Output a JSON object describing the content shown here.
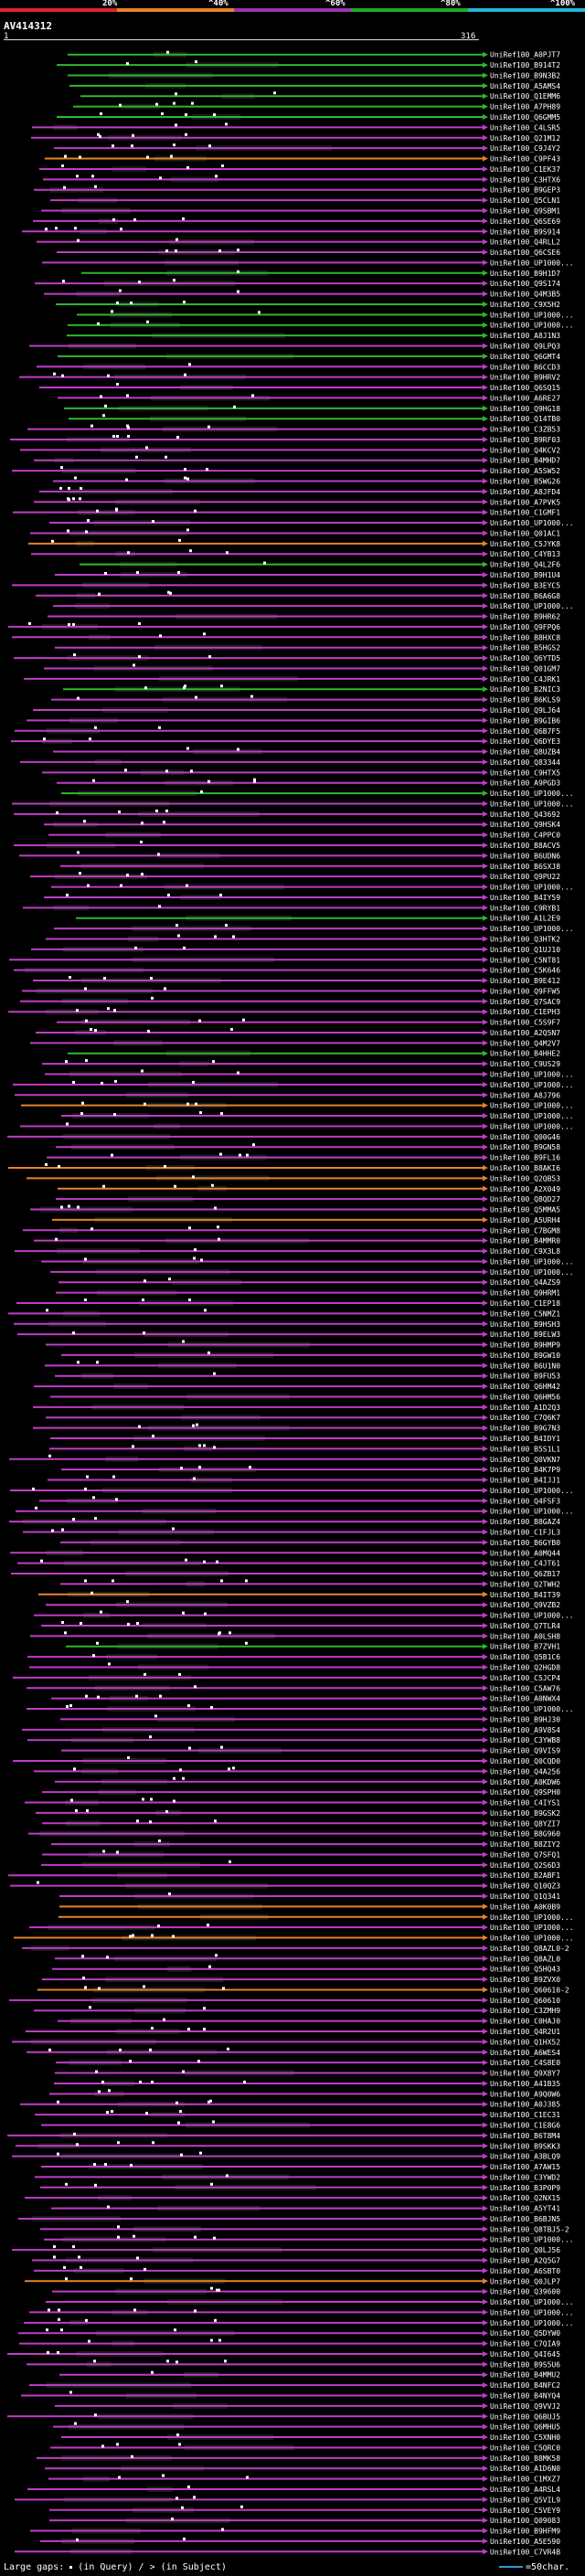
{
  "legend": {
    "labels": [
      "20%",
      "^40%",
      "^60%",
      "^80%",
      "^100%"
    ],
    "colors": [
      "#e0242c",
      "#e8822a",
      "#9b34b0",
      "#1faa2a",
      "#21b6d4"
    ]
  },
  "query_id": "AV414312",
  "ruler": {
    "start": "1",
    "end": "316"
  },
  "hits": [
    "UniRef100_A0PJT7",
    "UniRef100_B914T2",
    "UniRef100_B9N3B2",
    "UniRef100_A5AMS4",
    "UniRef100_Q1EMM6",
    "UniRef100_A7PH89",
    "UniRef100_Q6GMM5",
    "UniRef100_C4LSR5",
    "UniRef100_Q21M12",
    "UniRef100_C9J4Y2",
    "UniRef100_C9PF43",
    "UniRef100_C1EK37",
    "UniRef100_C3HTX6",
    "UniRef100_B9GEP3",
    "UniRef100_Q5CLN1",
    "UniRef100_Q9SBM1",
    "UniRef100_Q6SE69",
    "UniRef100_B9S914",
    "UniRef100_Q4RLL2",
    "UniRef100_Q6CSE6",
    "UniRef100_UP1000...",
    "UniRef100_B9H1D7",
    "UniRef100_Q9S174",
    "UniRef100_Q4M3B5",
    "UniRef100_C9X5H2",
    "UniRef100_UP1000...",
    "UniRef100_UP1000...",
    "UniRef100_A8J1N3",
    "UniRef100_Q9LPQ3",
    "UniRef100_Q6GMT4",
    "UniRef100_B6CCD3",
    "UniRef100_B9HRV2",
    "UniRef100_Q6SQ15",
    "UniRef100_A6RE27",
    "UniRef100_Q9HG18",
    "UniRef100_Q14TB0",
    "UniRef100_C3ZB53",
    "UniRef100_B9RF03",
    "UniRef100_Q4KCV2",
    "UniRef100_B4MHD7",
    "UniRef100_A5SW52",
    "UniRef100_B5WG26",
    "UniRef100_A8JFD4",
    "UniRef100_A7PVK5",
    "UniRef100_C1GMF1",
    "UniRef100_UP1000...",
    "UniRef100_Q01AC1",
    "UniRef100_C5JYK8",
    "UniRef100_C4YB13",
    "UniRef100_Q4L2F6",
    "UniRef100_B9H1U4",
    "UniRef100_B3EYC5",
    "UniRef100_B6A6G8",
    "UniRef100_UP1000...",
    "UniRef100_B9HR62",
    "UniRef100_Q9FPQ6",
    "UniRef100_B8HXC8",
    "UniRef100_B5HGS2",
    "UniRef100_Q6YTD5",
    "UniRef100_Q01GM7",
    "UniRef100_C4JRK1",
    "UniRef100_B2NIC3",
    "UniRef100_B6KLS9",
    "UniRef100_Q9LJ64",
    "UniRef100_B9GIB6",
    "UniRef100_Q6B7F5",
    "UniRef100_Q6DYE3",
    "UniRef100_Q8UZB4",
    "UniRef100_Q83344",
    "UniRef100_C9HTX5",
    "UniRef100_A9PGD3",
    "UniRef100_UP1000...",
    "UniRef100_UP1000...",
    "UniRef100_Q43692",
    "UniRef100_Q9HSK4",
    "UniRef100_C4PPC0",
    "UniRef100_B8ACV5",
    "UniRef100_B6UDN6",
    "UniRef100_B6SXJ8",
    "UniRef100_Q9PU22",
    "UniRef100_UP1000...",
    "UniRef100_B4IY59",
    "UniRef100_C9RYB1",
    "UniRef100_A1L2E9",
    "UniRef100_UP1000...",
    "UniRef100_Q3HTK2",
    "UniRef100_Q1UJ10",
    "UniRef100_C5NT81",
    "UniRef100_C5K646",
    "UniRef100_B9E412",
    "UniRef100_Q9FFW5",
    "UniRef100_Q7SAC9",
    "UniRef100_C1EPH3",
    "UniRef100_C5S9F7",
    "UniRef100_A2Q5N7",
    "UniRef100_Q4M2V7",
    "UniRef100_B4HHE2",
    "UniRef100_C9US29",
    "UniRef100_UP1000...",
    "UniRef100_UP1000...",
    "UniRef100_A8J796",
    "UniRef100_UP1000...",
    "UniRef100_UP1000...",
    "UniRef100_UP1000...",
    "UniRef100_Q00G46",
    "UniRef100_B9GN58",
    "UniRef100_B9FL16",
    "UniRef100_B8AKI6",
    "UniRef100_Q2QB53",
    "UniRef100_A2X049",
    "UniRef100_Q8QD27",
    "UniRef100_Q5MMA5",
    "UniRef100_A5URH4",
    "UniRef100_C7BGM8",
    "UniRef100_B4MMR0",
    "UniRef100_C9X3L8",
    "UniRef100_UP1000...",
    "UniRef100_UP1000...",
    "UniRef100_Q4AZS9",
    "UniRef100_Q9HRM1",
    "UniRef100_C1EP18",
    "UniRef100_C5NMZ1",
    "UniRef100_B9HSH3",
    "UniRef100_B9ELW3",
    "UniRef100_B9HMP9",
    "UniRef100_B9GW10",
    "UniRef100_B6U1N0",
    "UniRef100_B9FU53",
    "UniRef100_Q6HM42",
    "UniRef100_Q6HM56",
    "UniRef100_A1D2Q3",
    "UniRef100_C7Q6K7",
    "UniRef100_B9G7N3",
    "UniRef100_B4IDY1",
    "UniRef100_B5S1L1",
    "UniRef100_Q0VKN7",
    "UniRef100_B4K7P9",
    "UniRef100_B4IJJ1",
    "UniRef100_UP1000...",
    "UniRef100_Q4FSF3",
    "UniRef100_UP1000...",
    "UniRef100_B8GAZ4",
    "UniRef100_C1FJL3",
    "UniRef100_B6GYB0",
    "UniRef100_A0MQ44",
    "UniRef100_C4JT61",
    "UniRef100_Q6ZB17",
    "UniRef100_Q2TWH2",
    "UniRef100_B4IT39",
    "UniRef100_Q9VZB2",
    "UniRef100_UP1000...",
    "UniRef100_Q7TLR4",
    "UniRef100_A0LSH8",
    "UniRef100_B7ZVH1",
    "UniRef100_Q5B1C6",
    "UniRef100_Q2HGD8",
    "UniRef100_C5JCP4",
    "UniRef100_C5AW76",
    "UniRef100_A0NWX4",
    "UniRef100_UP1000...",
    "UniRef100_B9HJ30",
    "UniRef100_A9V8S4",
    "UniRef100_C3YWB8",
    "UniRef100_Q9VIS9",
    "UniRef100_Q0CQD0",
    "UniRef100_Q4A256",
    "UniRef100_A0KDW6",
    "UniRef100_Q9SPH0",
    "UniRef100_C4IYS1",
    "UniRef100_B9GSK2",
    "UniRef100_Q8YZI7",
    "UniRef100_B8G960",
    "UniRef100_B8ZIY2",
    "UniRef100_Q7SFQ1",
    "UniRef100_Q2S6D3",
    "UniRef100_B2ABF1",
    "UniRef100_Q10QZ3",
    "UniRef100_Q1Q341",
    "UniRef100_A0K0B9",
    "UniRef100_UP1000...",
    "UniRef100_UP1000...",
    "UniRef100_UP1000...",
    "UniRef100_Q8AZL0-2",
    "UniRef100_Q8AZL0",
    "UniRef100_Q5HQ43",
    "UniRef100_B9ZVX0",
    "UniRef100_Q60610-2",
    "UniRef100_Q60610",
    "UniRef100_C3ZMH9",
    "UniRef100_C0HAJ0",
    "UniRef100_Q4R2U1",
    "UniRef100_Q1HX52",
    "UniRef100_A6WES4",
    "UniRef100_C4S8E0",
    "UniRef100_Q9X8Y7",
    "UniRef100_A41B35",
    "UniRef100_A9Q0W6",
    "UniRef100_A0J385",
    "UniRef100_C1EC31",
    "UniRef100_C1E8G6",
    "UniRef100_B6T8M4",
    "UniRef100_B9SKK3",
    "UniRef100_A3BLQ9",
    "UniRef100_A7AW15",
    "UniRef100_C3YWD2",
    "UniRef100_B3P0P9",
    "UniRef100_Q2NX15",
    "UniRef100_A5YT41",
    "UniRef100_B6BJN5",
    "UniRef100_Q8TBJ5-2",
    "UniRef100_UP1000...",
    "UniRef100_Q0LJ56",
    "UniRef100_A2Q5G7",
    "UniRef100_A6SBT0",
    "UniRef100_Q0JLP7",
    "UniRef100_Q39600",
    "UniRef100_UP1000...",
    "UniRef100_UP1000...",
    "UniRef100_UP1000...",
    "UniRef100_Q5DYW0",
    "UniRef100_C7QIA9",
    "UniRef100_Q4I645",
    "UniRef100_B9S5U6",
    "UniRef100_B4MMU2",
    "UniRef100_B4NFC2",
    "UniRef100_B4NYQ4",
    "UniRef100_Q9VVJ2",
    "UniRef100_Q6BUJ5",
    "UniRef100_Q6MHU5",
    "UniRef100_C5XNH0",
    "UniRef100_C5QRC0",
    "UniRef100_B8MK58",
    "UniRef100_A1D6N0",
    "UniRef100_C1MXZ7",
    "UniRef100_A4RSL4",
    "UniRef100_Q5VIL9",
    "UniRef100_C5VEY9",
    "UniRef100_Q09083",
    "UniRef100_B9HFM9",
    "UniRef100_A5E590",
    "UniRef100_C7VR4B"
  ],
  "footer": {
    "label": "Large gaps:",
    "in_query": "(in Query)",
    "sep": "/",
    "gt_sign": ">",
    "in_subject": "(in Subject)",
    "scale": "=50char."
  }
}
